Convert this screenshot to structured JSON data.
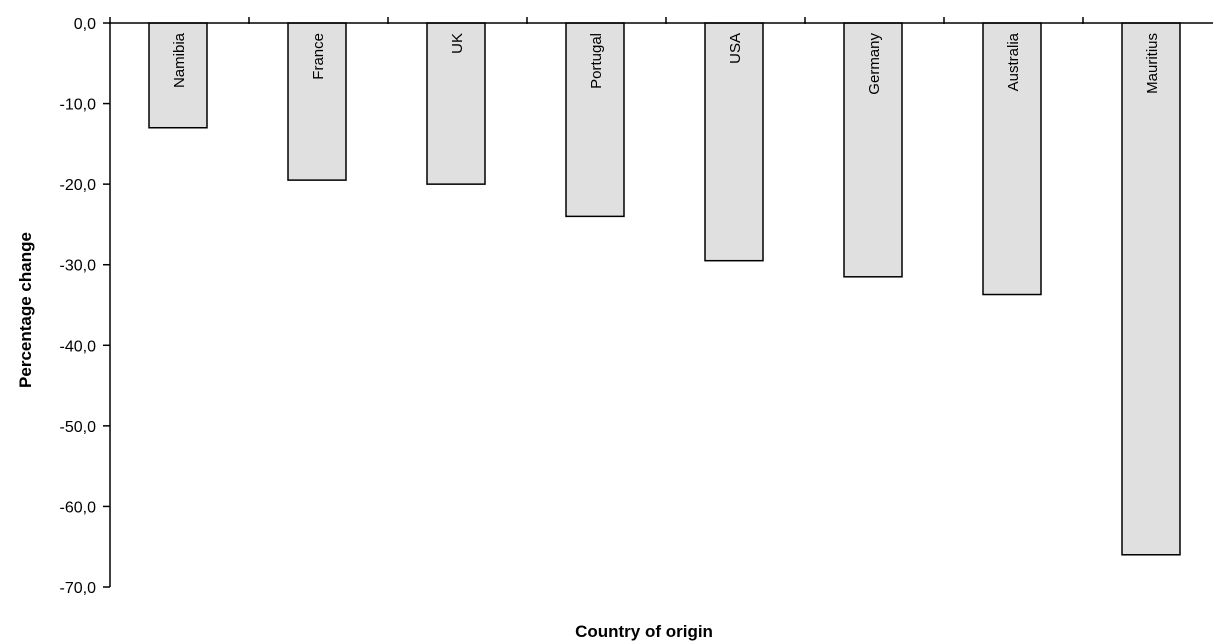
{
  "chart_data": {
    "type": "bar",
    "title": "",
    "xlabel": "Country of origin",
    "ylabel": "Percentage change",
    "categories": [
      "Namibia",
      "France",
      "UK",
      "Portugal",
      "USA",
      "Germany",
      "Australia",
      "Mauritius"
    ],
    "values": [
      -13.0,
      -19.5,
      -20.0,
      -24.0,
      -29.5,
      -31.5,
      -33.7,
      -66.0
    ],
    "ylim": [
      -70,
      0
    ],
    "yticks": [
      "0,0",
      "-10,0",
      "-20,0",
      "-30,0",
      "-40,0",
      "-50,0",
      "-60,0",
      "-70,0"
    ],
    "grid": false,
    "legend": "none",
    "bar_color": "#e0e0e0",
    "bar_border_color": "#000000"
  }
}
